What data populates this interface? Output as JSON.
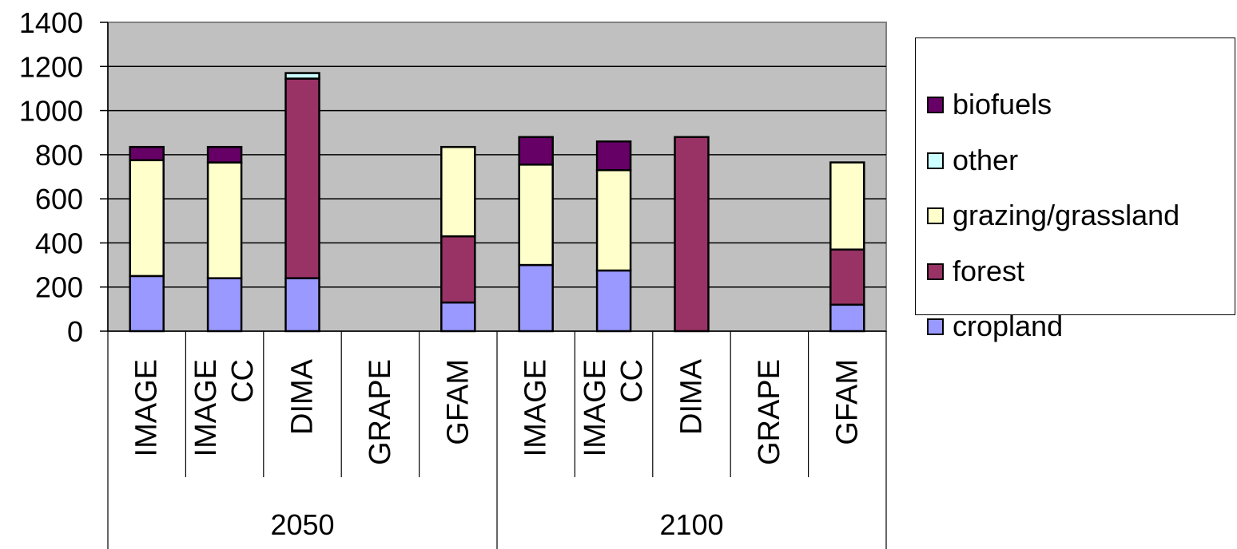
{
  "chart_data": {
    "type": "bar",
    "stacked": true,
    "ylim": [
      0,
      1400
    ],
    "yticks": [
      0,
      200,
      400,
      600,
      800,
      1000,
      1200,
      1400
    ],
    "grid": true,
    "plot_background": "#c0c0c0",
    "legend_position": "right",
    "groups": [
      {
        "label": "2050",
        "categories": [
          "IMAGE",
          "IMAGE CC",
          "DIMA",
          "GRAPE",
          "GFAM"
        ]
      },
      {
        "label": "2100",
        "categories": [
          "IMAGE",
          "IMAGE CC",
          "DIMA",
          "GRAPE",
          "GFAM"
        ]
      }
    ],
    "category_labels": [
      [
        "IMAGE"
      ],
      [
        "IMAGE",
        "CC"
      ],
      [
        "DIMA"
      ],
      [
        "GRAPE"
      ],
      [
        "GFAM"
      ],
      [
        "IMAGE"
      ],
      [
        "IMAGE",
        "CC"
      ],
      [
        "DIMA"
      ],
      [
        "GRAPE"
      ],
      [
        "GFAM"
      ]
    ],
    "series": [
      {
        "name": "cropland",
        "color": "#9999ff",
        "values": [
          250,
          240,
          240,
          0,
          130,
          300,
          275,
          0,
          0,
          120
        ]
      },
      {
        "name": "forest",
        "color": "#993366",
        "values": [
          0,
          0,
          905,
          0,
          300,
          0,
          0,
          880,
          0,
          250
        ]
      },
      {
        "name": "grazing/grassland",
        "color": "#ffffcc",
        "values": [
          525,
          525,
          0,
          0,
          405,
          455,
          455,
          0,
          0,
          395
        ]
      },
      {
        "name": "other",
        "color": "#ccffff",
        "values": [
          0,
          0,
          25,
          0,
          0,
          0,
          0,
          0,
          0,
          0
        ]
      },
      {
        "name": "biofuels",
        "color": "#660066",
        "values": [
          60,
          70,
          0,
          0,
          0,
          125,
          130,
          0,
          0,
          0
        ]
      }
    ]
  },
  "legend": {
    "items": [
      {
        "label": "biofuels",
        "color": "#660066"
      },
      {
        "label": "other",
        "color": "#ccffff"
      },
      {
        "label": "grazing/grassland",
        "color": "#ffffcc"
      },
      {
        "label": "forest",
        "color": "#993366"
      },
      {
        "label": "cropland",
        "color": "#9999ff"
      }
    ]
  }
}
